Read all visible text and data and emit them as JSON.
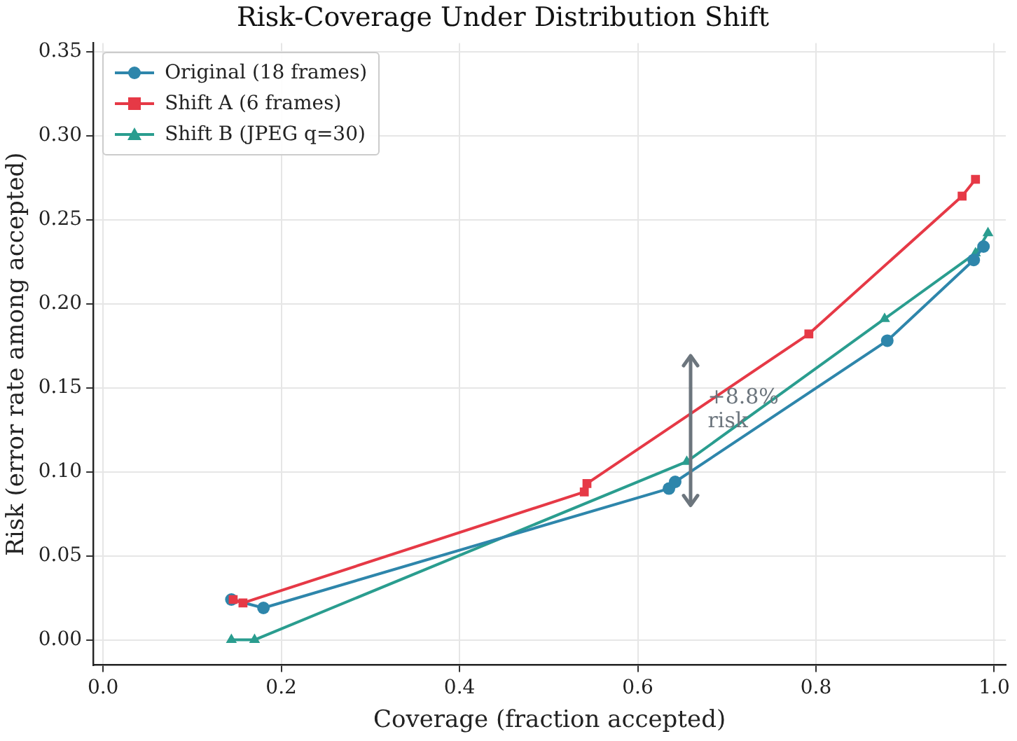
{
  "chart_data": {
    "type": "line",
    "title": "Risk-Coverage Under Distribution Shift",
    "xlabel": "Coverage (fraction accepted)",
    "ylabel": "Risk (error rate among accepted)",
    "series": [
      {
        "name": "Original (18 frames)",
        "color": "#2e86ab",
        "marker": "circle",
        "x": [
          0.144,
          0.18,
          0.635,
          0.642,
          0.88,
          0.977,
          0.988
        ],
        "values": [
          0.024,
          0.019,
          0.09,
          0.094,
          0.178,
          0.226,
          0.234
        ]
      },
      {
        "name": "Shift A (6 frames)",
        "color": "#e63946",
        "marker": "square",
        "x": [
          0.146,
          0.157,
          0.54,
          0.543,
          0.792,
          0.964,
          0.979
        ],
        "values": [
          0.024,
          0.022,
          0.088,
          0.093,
          0.182,
          0.264,
          0.274
        ]
      },
      {
        "name": "Shift B (JPEG q=30)",
        "color": "#2a9d8f",
        "marker": "triangle",
        "x": [
          0.144,
          0.17,
          0.655,
          0.877,
          0.979,
          0.993
        ],
        "values": [
          0,
          0,
          0.106,
          0.191,
          0.23,
          0.242
        ]
      }
    ],
    "xlim": [
      -0.011,
      1.013
    ],
    "ylim": [
      -0.015,
      0.355
    ],
    "xticks": [
      {
        "value": 0,
        "label": "0.0"
      },
      {
        "value": 0.2,
        "label": "0.2"
      },
      {
        "value": 0.4,
        "label": "0.4"
      },
      {
        "value": 0.6,
        "label": "0.6"
      },
      {
        "value": 0.8,
        "label": "0.8"
      },
      {
        "value": 1,
        "label": "1.0"
      }
    ],
    "yticks": [
      {
        "value": 0,
        "label": "0.00"
      },
      {
        "value": 0.05,
        "label": "0.05"
      },
      {
        "value": 0.1,
        "label": "0.10"
      },
      {
        "value": 0.15,
        "label": "0.15"
      },
      {
        "value": 0.2,
        "label": "0.20"
      },
      {
        "value": 0.25,
        "label": "0.25"
      },
      {
        "value": 0.3,
        "label": "0.30"
      },
      {
        "value": 0.35,
        "label": "0.35"
      }
    ],
    "annotations": [
      "+8.8%\nrisk"
    ],
    "grid": true,
    "legend": "top left",
    "line_style": "solid"
  }
}
